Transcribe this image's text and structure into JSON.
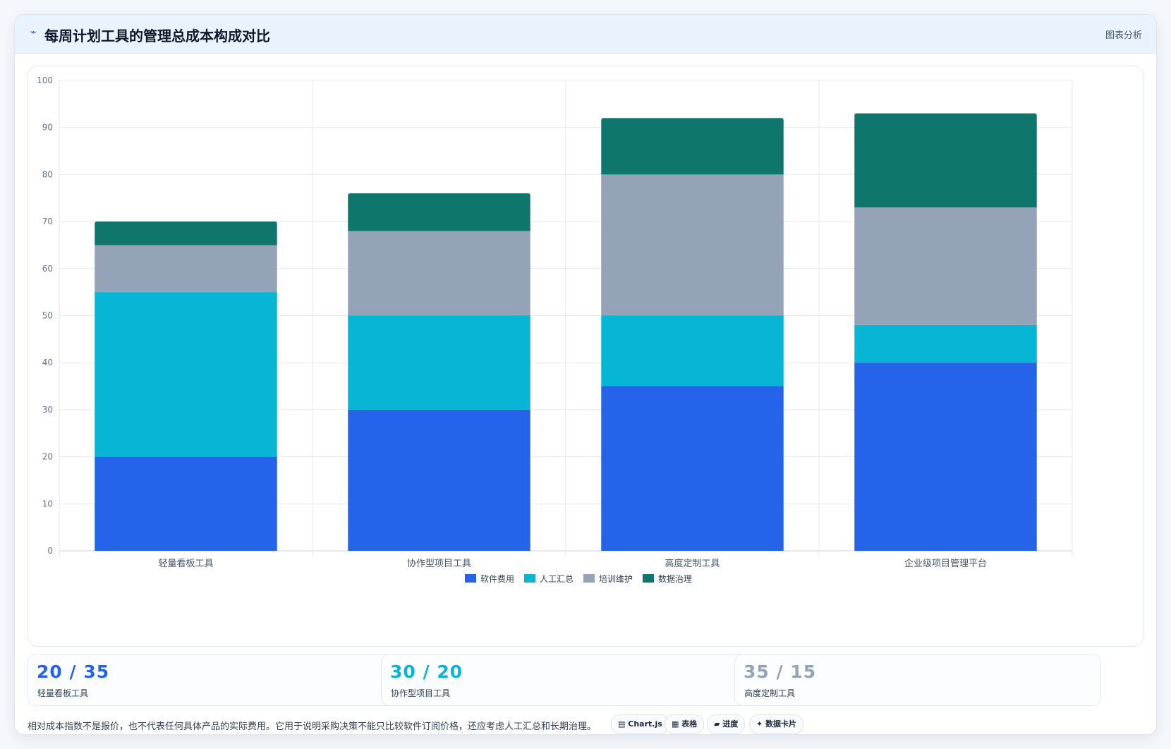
{
  "header": {
    "icon": "wave-icon",
    "title": "每周计划工具的管理总成本构成对比",
    "tag": "图表分析"
  },
  "chart_data": {
    "type": "bar",
    "stacked": true,
    "categories": [
      "轻量看板工具",
      "协作型项目工具",
      "高度定制工具",
      "企业级项目管理平台"
    ],
    "series": [
      {
        "name": "软件费用",
        "color": "#2563eb",
        "values": [
          20,
          30,
          35,
          40
        ]
      },
      {
        "name": "人工汇总",
        "color": "#06b6d4",
        "values": [
          35,
          20,
          15,
          8
        ]
      },
      {
        "name": "培训维护",
        "color": "#94a3b8",
        "values": [
          10,
          18,
          30,
          25
        ]
      },
      {
        "name": "数据治理",
        "color": "#0f766e",
        "values": [
          5,
          8,
          12,
          20
        ]
      }
    ],
    "ylim": [
      0,
      100
    ],
    "yticks": [
      0,
      10,
      20,
      30,
      40,
      50,
      60,
      70,
      80,
      90,
      100
    ],
    "grid": true,
    "legend_position": "bottom"
  },
  "stats": [
    {
      "value": "20 / 35",
      "label": "轻量看板工具",
      "color": "#2563eb"
    },
    {
      "value": "30 / 20",
      "label": "协作型项目工具",
      "color": "#06b6d4"
    },
    {
      "value": "35 / 15",
      "label": "高度定制工具",
      "color": "#94a3b8"
    }
  ],
  "footnote": "相对成本指数不是报价，也不代表任何具体产品的实际费用。它用于说明采购决策不能只比较软件订阅价格，还应考虑人工汇总和长期治理。",
  "tags": [
    {
      "icon": "chart-icon",
      "glyph": "▤",
      "label": "Chart.js"
    },
    {
      "icon": "table-icon",
      "glyph": "▦",
      "label": "表格"
    },
    {
      "icon": "progress-icon",
      "glyph": "▰",
      "label": "进度"
    },
    {
      "icon": "sparkle-icon",
      "glyph": "✦",
      "label": "数据卡片"
    }
  ]
}
